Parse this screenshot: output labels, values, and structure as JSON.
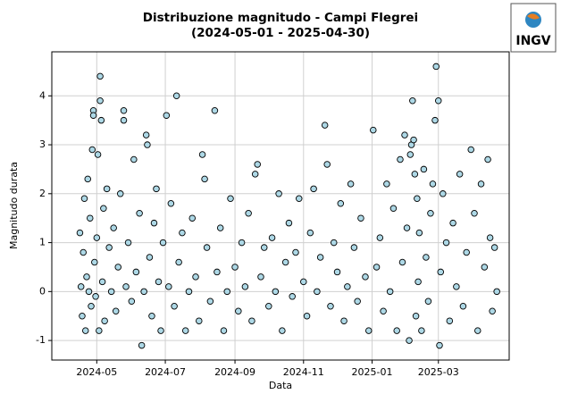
{
  "chart_data": {
    "type": "scatter",
    "title": "Distribuzione magnitudo - Campi Flegrei",
    "subtitle": "(2024-05-01 - 2025-04-30)",
    "x_label": "Data",
    "y_label": "Magnitudo durata",
    "logo": "INGV",
    "grid": true,
    "xlim": [
      "2024-03-22",
      "2025-05-03"
    ],
    "xticks": [
      "2024-05",
      "2024-07",
      "2024-09",
      "2024-11",
      "2025-01",
      "2025-03"
    ],
    "ylim": [
      -1.4,
      4.9
    ],
    "yticks": [
      -1,
      0,
      1,
      2,
      3,
      4
    ],
    "series": [
      {
        "color": "#add8e6",
        "edge_color": "#000000",
        "x": [
          "2024-04-16",
          "2024-04-17",
          "2024-04-18",
          "2024-04-19",
          "2024-04-20",
          "2024-04-21",
          "2024-04-22",
          "2024-04-23",
          "2024-04-24",
          "2024-04-25",
          "2024-04-26",
          "2024-04-27",
          "2024-04-28",
          "2024-04-28",
          "2024-04-29",
          "2024-04-30",
          "2024-05-01",
          "2024-05-02",
          "2024-05-03",
          "2024-05-04",
          "2024-05-04",
          "2024-05-05",
          "2024-05-06",
          "2024-05-07",
          "2024-05-08",
          "2024-05-10",
          "2024-05-12",
          "2024-05-14",
          "2024-05-16",
          "2024-05-18",
          "2024-05-20",
          "2024-05-22",
          "2024-05-25",
          "2024-05-25",
          "2024-05-27",
          "2024-05-29",
          "2024-06-01",
          "2024-06-03",
          "2024-06-05",
          "2024-06-08",
          "2024-06-10",
          "2024-06-12",
          "2024-06-14",
          "2024-06-15",
          "2024-06-17",
          "2024-06-19",
          "2024-06-21",
          "2024-06-23",
          "2024-06-25",
          "2024-06-27",
          "2024-06-29",
          "2024-07-02",
          "2024-07-04",
          "2024-07-06",
          "2024-07-09",
          "2024-07-11",
          "2024-07-13",
          "2024-07-16",
          "2024-07-19",
          "2024-07-22",
          "2024-07-25",
          "2024-07-28",
          "2024-07-31",
          "2024-08-03",
          "2024-08-05",
          "2024-08-07",
          "2024-08-10",
          "2024-08-14",
          "2024-08-16",
          "2024-08-19",
          "2024-08-22",
          "2024-08-25",
          "2024-08-28",
          "2024-09-01",
          "2024-09-04",
          "2024-09-07",
          "2024-09-10",
          "2024-09-13",
          "2024-09-16",
          "2024-09-19",
          "2024-09-21",
          "2024-09-24",
          "2024-09-27",
          "2024-10-01",
          "2024-10-04",
          "2024-10-07",
          "2024-10-10",
          "2024-10-13",
          "2024-10-16",
          "2024-10-19",
          "2024-10-22",
          "2024-10-25",
          "2024-10-28",
          "2024-11-01",
          "2024-11-04",
          "2024-11-07",
          "2024-11-10",
          "2024-11-13",
          "2024-11-16",
          "2024-11-20",
          "2024-11-22",
          "2024-11-25",
          "2024-11-28",
          "2024-12-01",
          "2024-12-04",
          "2024-12-07",
          "2024-12-10",
          "2024-12-13",
          "2024-12-16",
          "2024-12-19",
          "2024-12-22",
          "2024-12-26",
          "2024-12-29",
          "2025-01-02",
          "2025-01-05",
          "2025-01-08",
          "2025-01-11",
          "2025-01-14",
          "2025-01-17",
          "2025-01-20",
          "2025-01-23",
          "2025-01-26",
          "2025-01-28",
          "2025-01-30",
          "2025-02-01",
          "2025-02-03",
          "2025-02-04",
          "2025-02-05",
          "2025-02-06",
          "2025-02-07",
          "2025-02-08",
          "2025-02-09",
          "2025-02-10",
          "2025-02-11",
          "2025-02-12",
          "2025-02-14",
          "2025-02-16",
          "2025-02-18",
          "2025-02-20",
          "2025-02-22",
          "2025-02-24",
          "2025-02-26",
          "2025-02-27",
          "2025-03-01",
          "2025-03-02",
          "2025-03-03",
          "2025-03-05",
          "2025-03-08",
          "2025-03-11",
          "2025-03-14",
          "2025-03-17",
          "2025-03-20",
          "2025-03-23",
          "2025-03-26",
          "2025-03-30",
          "2025-04-02",
          "2025-04-05",
          "2025-04-08",
          "2025-04-11",
          "2025-04-14",
          "2025-04-16",
          "2025-04-18",
          "2025-04-20",
          "2025-04-22"
        ],
        "values": [
          1.2,
          0.1,
          -0.5,
          0.8,
          1.9,
          -0.8,
          0.3,
          2.3,
          0.0,
          1.5,
          -0.3,
          2.9,
          3.7,
          3.6,
          0.6,
          -0.1,
          1.1,
          2.8,
          -0.8,
          4.4,
          3.9,
          3.5,
          0.2,
          1.7,
          -0.6,
          2.1,
          0.9,
          0.0,
          1.3,
          -0.4,
          0.5,
          2.0,
          3.7,
          3.5,
          0.1,
          1.0,
          -0.2,
          2.7,
          0.4,
          1.6,
          -1.1,
          0.0,
          3.2,
          3.0,
          0.7,
          -0.5,
          1.4,
          2.1,
          0.2,
          -0.8,
          1.0,
          3.6,
          0.1,
          1.8,
          -0.3,
          4.0,
          0.6,
          1.2,
          -0.8,
          0.0,
          1.5,
          0.3,
          -0.6,
          2.8,
          2.3,
          0.9,
          -0.2,
          3.7,
          0.4,
          1.3,
          -0.8,
          0.0,
          1.9,
          0.5,
          -0.4,
          1.0,
          0.1,
          1.6,
          -0.6,
          2.4,
          2.6,
          0.3,
          0.9,
          -0.3,
          1.1,
          0.0,
          2.0,
          -0.8,
          0.6,
          1.4,
          -0.1,
          0.8,
          1.9,
          0.2,
          -0.5,
          1.2,
          2.1,
          0.0,
          0.7,
          3.4,
          2.6,
          -0.3,
          1.0,
          0.4,
          1.8,
          -0.6,
          0.1,
          2.2,
          0.9,
          -0.2,
          1.5,
          0.3,
          -0.8,
          3.3,
          0.5,
          1.1,
          -0.4,
          2.2,
          0.0,
          1.7,
          -0.8,
          2.7,
          0.6,
          3.2,
          1.3,
          -1.0,
          2.8,
          3.0,
          3.9,
          3.1,
          2.4,
          -0.5,
          1.9,
          0.2,
          1.2,
          -0.8,
          2.5,
          0.7,
          -0.2,
          1.6,
          2.2,
          3.5,
          4.6,
          3.9,
          -1.1,
          0.4,
          2.0,
          1.0,
          -0.6,
          1.4,
          0.1,
          2.4,
          -0.3,
          0.8,
          2.9,
          1.6,
          -0.8,
          2.2,
          0.5,
          2.7,
          1.1,
          -0.4,
          0.9,
          0.0
        ]
      }
    ]
  }
}
